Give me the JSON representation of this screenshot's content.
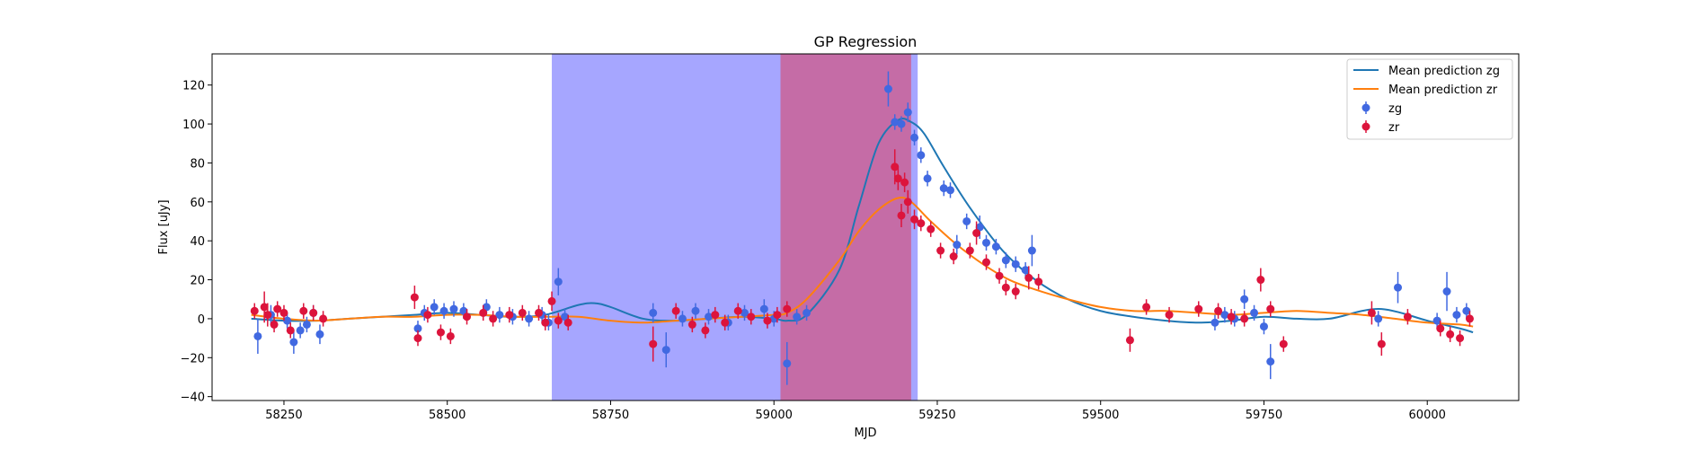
{
  "chart_data": {
    "type": "scatter",
    "title": "GP Regression",
    "xlabel": "MJD",
    "ylabel": "Flux [uJy]",
    "xlim": [
      58140,
      60140
    ],
    "ylim": [
      -42,
      136
    ],
    "xticks": [
      58250,
      58500,
      58750,
      59000,
      59250,
      59500,
      59750,
      60000
    ],
    "yticks": [
      -40,
      -20,
      0,
      20,
      40,
      60,
      80,
      100,
      120
    ],
    "grid": false,
    "legend_position": "top-right",
    "shaded_regions": [
      {
        "x0": 58660,
        "x1": 59220,
        "color": "#0000ff",
        "opacity": 0.35
      },
      {
        "x0": 59010,
        "x1": 59210,
        "color": "#ff0000",
        "opacity": 0.35
      }
    ],
    "series": [
      {
        "name": "Mean prediction zg",
        "kind": "line",
        "color": "#1f77b4",
        "x": [
          58200,
          58250,
          58300,
          58350,
          58400,
          58450,
          58500,
          58550,
          58600,
          58650,
          58700,
          58725,
          58750,
          58800,
          58850,
          58900,
          58950,
          59000,
          59020,
          59050,
          59100,
          59130,
          59160,
          59190,
          59210,
          59230,
          59260,
          59300,
          59350,
          59400,
          59450,
          59500,
          59550,
          59600,
          59650,
          59700,
          59750,
          59800,
          59850,
          59900,
          59930,
          59960,
          60000,
          60050,
          60070
        ],
        "values": [
          0,
          -1,
          -1,
          0,
          1,
          2,
          3,
          2,
          1,
          2,
          7,
          8,
          6,
          0,
          -1,
          0,
          1,
          0,
          -1,
          2,
          25,
          58,
          90,
          102,
          101,
          95,
          78,
          57,
          35,
          20,
          10,
          4,
          1,
          -1,
          -2,
          -1,
          1,
          0,
          0,
          4,
          5,
          3,
          -1,
          -5,
          -7
        ]
      },
      {
        "name": "Mean prediction zr",
        "kind": "line",
        "color": "#ff7f0e",
        "x": [
          58200,
          58250,
          58300,
          58350,
          58400,
          58450,
          58500,
          58550,
          58600,
          58650,
          58700,
          58750,
          58800,
          58850,
          58900,
          58950,
          59000,
          59020,
          59050,
          59100,
          59130,
          59160,
          59190,
          59210,
          59240,
          59280,
          59320,
          59360,
          59400,
          59450,
          59500,
          59550,
          59600,
          59650,
          59700,
          59750,
          59800,
          59850,
          59900,
          59950,
          60000,
          60050,
          60070
        ],
        "values": [
          2,
          0,
          -1,
          0,
          1,
          1,
          2,
          2,
          1,
          1,
          1,
          -1,
          -2,
          -1,
          0,
          1,
          2,
          3,
          10,
          30,
          45,
          56,
          62,
          60,
          50,
          38,
          28,
          20,
          15,
          10,
          6,
          4,
          4,
          3,
          2,
          3,
          4,
          3,
          2,
          0,
          -2,
          -3,
          -4
        ]
      },
      {
        "name": "zg",
        "kind": "errorbar",
        "color": "#4169e1",
        "x": [
          58210,
          58230,
          58255,
          58265,
          58275,
          58285,
          58295,
          58305,
          58455,
          58465,
          58480,
          58495,
          58510,
          58525,
          58560,
          58580,
          58600,
          58625,
          58645,
          58655,
          58670,
          58680,
          58815,
          58835,
          58860,
          58880,
          58900,
          58930,
          58955,
          58985,
          59000,
          59020,
          59035,
          59050,
          59175,
          59185,
          59195,
          59205,
          59215,
          59225,
          59235,
          59260,
          59270,
          59280,
          59295,
          59315,
          59325,
          59340,
          59355,
          59370,
          59385,
          59395,
          59675,
          59690,
          59705,
          59720,
          59735,
          59750,
          59760,
          59925,
          59955,
          60015,
          60030,
          60045,
          60060
        ],
        "values": [
          -9,
          2,
          -1,
          -12,
          -6,
          -3,
          3,
          -8,
          -5,
          3,
          6,
          4,
          5,
          4,
          6,
          2,
          1,
          0,
          2,
          -2,
          19,
          1,
          3,
          -16,
          0,
          4,
          1,
          -2,
          3,
          5,
          0,
          -23,
          1,
          3,
          118,
          101,
          100,
          106,
          93,
          84,
          72,
          67,
          66,
          38,
          50,
          47,
          39,
          37,
          30,
          28,
          25,
          35,
          -2,
          2,
          0,
          10,
          3,
          -4,
          -22,
          0,
          16,
          -1,
          14,
          2,
          4
        ],
        "errors": [
          9,
          5,
          4,
          6,
          4,
          4,
          4,
          5,
          4,
          4,
          4,
          4,
          4,
          4,
          4,
          4,
          4,
          4,
          4,
          4,
          7,
          4,
          5,
          9,
          4,
          4,
          4,
          4,
          4,
          5,
          4,
          11,
          4,
          4,
          9,
          4,
          4,
          5,
          4,
          4,
          4,
          4,
          4,
          5,
          4,
          6,
          4,
          4,
          4,
          4,
          4,
          8,
          4,
          4,
          4,
          5,
          4,
          4,
          9,
          4,
          8,
          4,
          10,
          4,
          4
        ]
      },
      {
        "name": "zr",
        "kind": "errorbar",
        "color": "#dc143c",
        "x": [
          58205,
          58220,
          58225,
          58235,
          58240,
          58250,
          58260,
          58280,
          58295,
          58310,
          58450,
          58455,
          58470,
          58490,
          58505,
          58530,
          58555,
          58570,
          58595,
          58615,
          58640,
          58650,
          58660,
          58670,
          58685,
          58815,
          58850,
          58875,
          58895,
          58910,
          58925,
          58945,
          58965,
          58990,
          59005,
          59020,
          59185,
          59190,
          59195,
          59200,
          59205,
          59215,
          59225,
          59240,
          59255,
          59275,
          59300,
          59310,
          59325,
          59345,
          59355,
          59370,
          59390,
          59405,
          59545,
          59570,
          59605,
          59650,
          59680,
          59700,
          59720,
          59745,
          59760,
          59780,
          59915,
          59930,
          59970,
          60020,
          60035,
          60050,
          60065
        ],
        "values": [
          4,
          6,
          2,
          -3,
          5,
          3,
          -6,
          4,
          3,
          0,
          11,
          -10,
          2,
          -7,
          -9,
          1,
          3,
          0,
          2,
          3,
          3,
          -2,
          9,
          -1,
          -2,
          -13,
          4,
          -3,
          -6,
          2,
          -2,
          4,
          1,
          -1,
          2,
          5,
          78,
          72,
          53,
          70,
          60,
          51,
          49,
          46,
          35,
          32,
          35,
          44,
          29,
          22,
          16,
          14,
          21,
          19,
          -11,
          6,
          2,
          5,
          4,
          1,
          0,
          20,
          5,
          -13,
          3,
          -13,
          1,
          -5,
          -8,
          -10,
          0
        ],
        "errors": [
          4,
          8,
          6,
          4,
          4,
          4,
          4,
          4,
          4,
          4,
          6,
          4,
          4,
          4,
          4,
          4,
          4,
          4,
          4,
          4,
          4,
          4,
          5,
          4,
          4,
          9,
          4,
          4,
          4,
          4,
          4,
          4,
          4,
          4,
          4,
          4,
          9,
          6,
          6,
          5,
          6,
          5,
          4,
          4,
          4,
          4,
          4,
          6,
          4,
          4,
          4,
          4,
          6,
          4,
          6,
          4,
          4,
          4,
          4,
          4,
          4,
          6,
          4,
          4,
          6,
          6,
          4,
          4,
          4,
          4,
          4
        ]
      }
    ]
  }
}
